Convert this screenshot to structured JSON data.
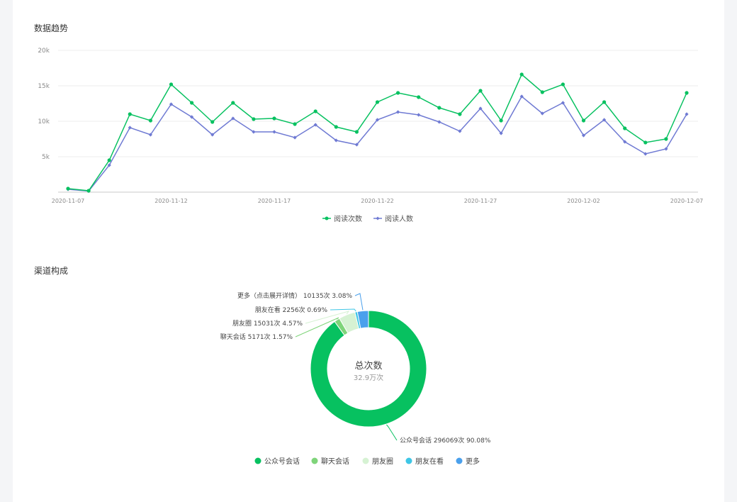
{
  "trend": {
    "title": "数据趋势"
  },
  "channel": {
    "title": "渠道构成",
    "center_title": "总次数",
    "center_value": "32.9万次"
  },
  "chart_data": [
    {
      "type": "line",
      "title": "数据趋势",
      "x": [
        "2020-11-07",
        "2020-11-08",
        "2020-11-09",
        "2020-11-10",
        "2020-11-11",
        "2020-11-12",
        "2020-11-13",
        "2020-11-14",
        "2020-11-15",
        "2020-11-16",
        "2020-11-17",
        "2020-11-18",
        "2020-11-19",
        "2020-11-20",
        "2020-11-21",
        "2020-11-22",
        "2020-11-23",
        "2020-11-24",
        "2020-11-25",
        "2020-11-26",
        "2020-11-27",
        "2020-11-28",
        "2020-11-29",
        "2020-11-30",
        "2020-12-01",
        "2020-12-02",
        "2020-12-03",
        "2020-12-04",
        "2020-12-05",
        "2020-12-06",
        "2020-12-07"
      ],
      "x_tick_labels": [
        "2020-11-07",
        "2020-11-12",
        "2020-11-17",
        "2020-11-22",
        "2020-11-27",
        "2020-12-02",
        "2020-12-07"
      ],
      "y_tick_labels": [
        "5k",
        "10k",
        "15k",
        "20k"
      ],
      "ylim": [
        0,
        20000
      ],
      "grid": true,
      "legend_position": "bottom",
      "series": [
        {
          "name": "阅读次数",
          "color": "#07c160",
          "values": [
            500,
            200,
            4500,
            11000,
            10100,
            15200,
            12600,
            9900,
            12600,
            10300,
            10400,
            9600,
            11400,
            9200,
            8500,
            12700,
            14000,
            13400,
            11900,
            11000,
            14300,
            10100,
            16600,
            14100,
            15200,
            10100,
            12700,
            9000,
            7000,
            7500,
            14000
          ]
        },
        {
          "name": "阅读人数",
          "color": "#6f7ad3",
          "values": [
            400,
            150,
            3800,
            9100,
            8100,
            12400,
            10600,
            8100,
            10400,
            8500,
            8500,
            7700,
            9500,
            7300,
            6700,
            10200,
            11300,
            10900,
            9900,
            8600,
            11800,
            8300,
            13500,
            11100,
            12600,
            8000,
            10200,
            7100,
            5400,
            6100,
            11000
          ]
        }
      ]
    },
    {
      "type": "pie",
      "title": "渠道构成",
      "slices": [
        {
          "name": "公众号会话",
          "label": "公众号会话 296069次 90.08%",
          "value": 296069,
          "percent": 90.08,
          "color": "#07c160"
        },
        {
          "name": "聊天会话",
          "label": "聊天会话 5171次 1.57%",
          "value": 5171,
          "percent": 1.57,
          "color": "#7fd47a"
        },
        {
          "name": "朋友圈",
          "label": "朋友圈 15031次 4.57%",
          "value": 15031,
          "percent": 4.57,
          "color": "#d6f2d3"
        },
        {
          "name": "朋友在看",
          "label": "朋友在看 2256次 0.69%",
          "value": 2256,
          "percent": 0.69,
          "color": "#3ec6e6"
        },
        {
          "name": "更多",
          "label": "更多（点击展开详情） 10135次 3.08%",
          "value": 10135,
          "percent": 3.08,
          "color": "#4aa0ec"
        }
      ],
      "legend_position": "bottom"
    }
  ]
}
